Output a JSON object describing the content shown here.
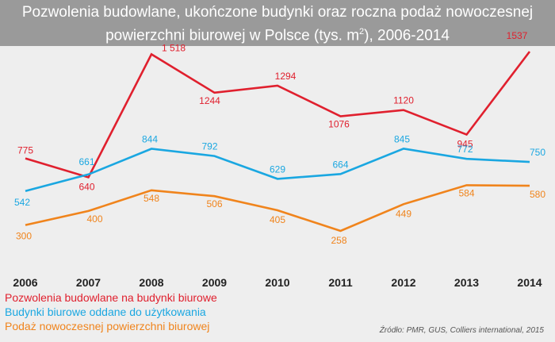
{
  "title": {
    "line1": "Pozwolenia budowlane, ukończone budynki oraz roczna podaż nowoczesnej",
    "line2_main": "powierzchni biurowej w Polsce (tys. m",
    "line2_sup": "2",
    "line2_end": "), 2006-2014"
  },
  "source": "Źródło: PMR, GUS, Colliers international, 2015",
  "colors": {
    "title_bg": "#9a9a9a",
    "plot_bg": "#eeeeee",
    "series_red": "#e0202e",
    "series_blue": "#1aa7e1",
    "series_orange": "#f0841c"
  },
  "chart_data": {
    "type": "line",
    "x": [
      "2006",
      "2007",
      "2008",
      "2009",
      "2010",
      "2011",
      "2012",
      "2013",
      "2014"
    ],
    "series": [
      {
        "name": "Pozwolenia budowlane na budynki biurowe",
        "values": [
          775,
          640,
          1518,
          1244,
          1294,
          1076,
          1120,
          945,
          1537
        ],
        "labels": [
          "775",
          "640",
          "1 518",
          "1244",
          "1294",
          "1076",
          "1120",
          "945",
          "1537"
        ]
      },
      {
        "name": "Budynki biurowe oddane do użytkowania",
        "values": [
          542,
          661,
          844,
          792,
          629,
          664,
          845,
          772,
          750
        ],
        "labels": [
          "542",
          "661",
          "844",
          "792",
          "629",
          "664",
          "845",
          "772",
          "750"
        ]
      },
      {
        "name": "Podaż nowoczesnej powierzchni biurowej",
        "values": [
          300,
          400,
          548,
          506,
          405,
          258,
          449,
          584,
          580
        ],
        "labels": [
          "300",
          "400",
          "548",
          "506",
          "405",
          "258",
          "449",
          "584",
          "580"
        ]
      }
    ],
    "grid": false,
    "legend_position": "bottom-left"
  }
}
